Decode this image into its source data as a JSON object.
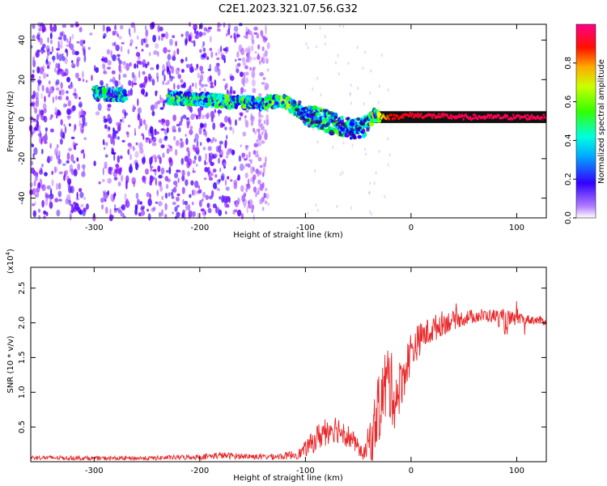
{
  "figure_title": "C2E1.2023.321.07.56.G32",
  "chart_data": [
    {
      "type": "heatmap",
      "xlabel": "Height of straight line (km)",
      "ylabel": "Frequency (Hz)",
      "xlim": [
        -360,
        128
      ],
      "ylim": [
        -50,
        48
      ],
      "x_ticks": [
        -300,
        -200,
        -100,
        0,
        100
      ],
      "x_tick_labels": [
        "-300",
        "-200",
        "-100",
        "0",
        "100"
      ],
      "y_ticks": [
        -40,
        -20,
        0,
        20,
        40
      ],
      "y_tick_labels": [
        "-40",
        "-20",
        "0",
        "20",
        "40"
      ],
      "colorbar": {
        "label": "Normalized spectral amplitude",
        "range": [
          0,
          1
        ],
        "ticks": [
          0.0,
          0.2,
          0.4,
          0.6,
          0.8
        ],
        "tick_labels": [
          "0.0",
          "0.2",
          "0.4",
          "0.6",
          "0.8"
        ],
        "colors": [
          "#ffffff",
          "#7f00ff",
          "#0000ff",
          "#00ffff",
          "#00ff00",
          "#ffff00",
          "#ff0000",
          "#ff0080"
        ]
      },
      "ridge": {
        "x": [
          -300,
          -270,
          -230,
          -200,
          -150,
          -120,
          -100,
          -85,
          -70,
          -55,
          -45,
          -35,
          -20,
          0,
          50,
          128
        ],
        "frequency": [
          13,
          12,
          11,
          10,
          8,
          9,
          2,
          0,
          -3,
          -5,
          -4,
          2,
          1,
          2,
          1,
          1
        ],
        "amplitude": [
          0.45,
          0.45,
          0.5,
          0.5,
          0.5,
          0.55,
          0.45,
          0.5,
          0.5,
          0.45,
          0.45,
          0.6,
          0.85,
          0.9,
          0.95,
          0.95
        ]
      },
      "noise_band": {
        "x_from": -360,
        "x_to": -135,
        "intensity": 0.3
      },
      "grid": false
    },
    {
      "type": "line",
      "xlabel": "Height of straight line (km)",
      "ylabel": "SNR (10 * v/v)",
      "y_scale_label_base": "(x10",
      "y_scale_label_exp": "4",
      "y_scale_label_close": ")",
      "xlim": [
        -360,
        128
      ],
      "ylim": [
        0,
        2.8
      ],
      "x_ticks": [
        -300,
        -200,
        -100,
        0,
        100
      ],
      "x_tick_labels": [
        "-300",
        "-200",
        "-100",
        "0",
        "100"
      ],
      "y_ticks": [
        0.5,
        1.0,
        1.5,
        2.0,
        2.5
      ],
      "y_tick_labels": [
        "0.5",
        "1.0",
        "1.5",
        "2.0",
        "2.5"
      ],
      "series": [
        {
          "color": "#e8282a",
          "x": [
            -360,
            -300,
            -250,
            -200,
            -180,
            -160,
            -140,
            -120,
            -105,
            -95,
            -85,
            -75,
            -65,
            -55,
            -45,
            -38,
            -30,
            -22,
            -15,
            -8,
            0,
            10,
            20,
            30,
            45,
            60,
            80,
            90,
            95,
            100,
            110,
            128
          ],
          "y": [
            0.06,
            0.05,
            0.05,
            0.07,
            0.09,
            0.08,
            0.07,
            0.08,
            0.12,
            0.25,
            0.4,
            0.5,
            0.45,
            0.3,
            0.1,
            0.35,
            0.8,
            1.2,
            0.9,
            1.2,
            1.6,
            1.8,
            1.9,
            2.0,
            2.05,
            2.1,
            2.1,
            2.0,
            2.05,
            2.05,
            2.05,
            2.02
          ],
          "noise": [
            0.03,
            0.03,
            0.03,
            0.04,
            0.05,
            0.04,
            0.04,
            0.05,
            0.08,
            0.15,
            0.22,
            0.22,
            0.2,
            0.15,
            0.08,
            0.35,
            0.5,
            0.6,
            0.45,
            0.35,
            0.3,
            0.22,
            0.2,
            0.18,
            0.12,
            0.1,
            0.1,
            0.2,
            0.12,
            0.08,
            0.07,
            0.06
          ]
        }
      ],
      "grid": false
    }
  ]
}
